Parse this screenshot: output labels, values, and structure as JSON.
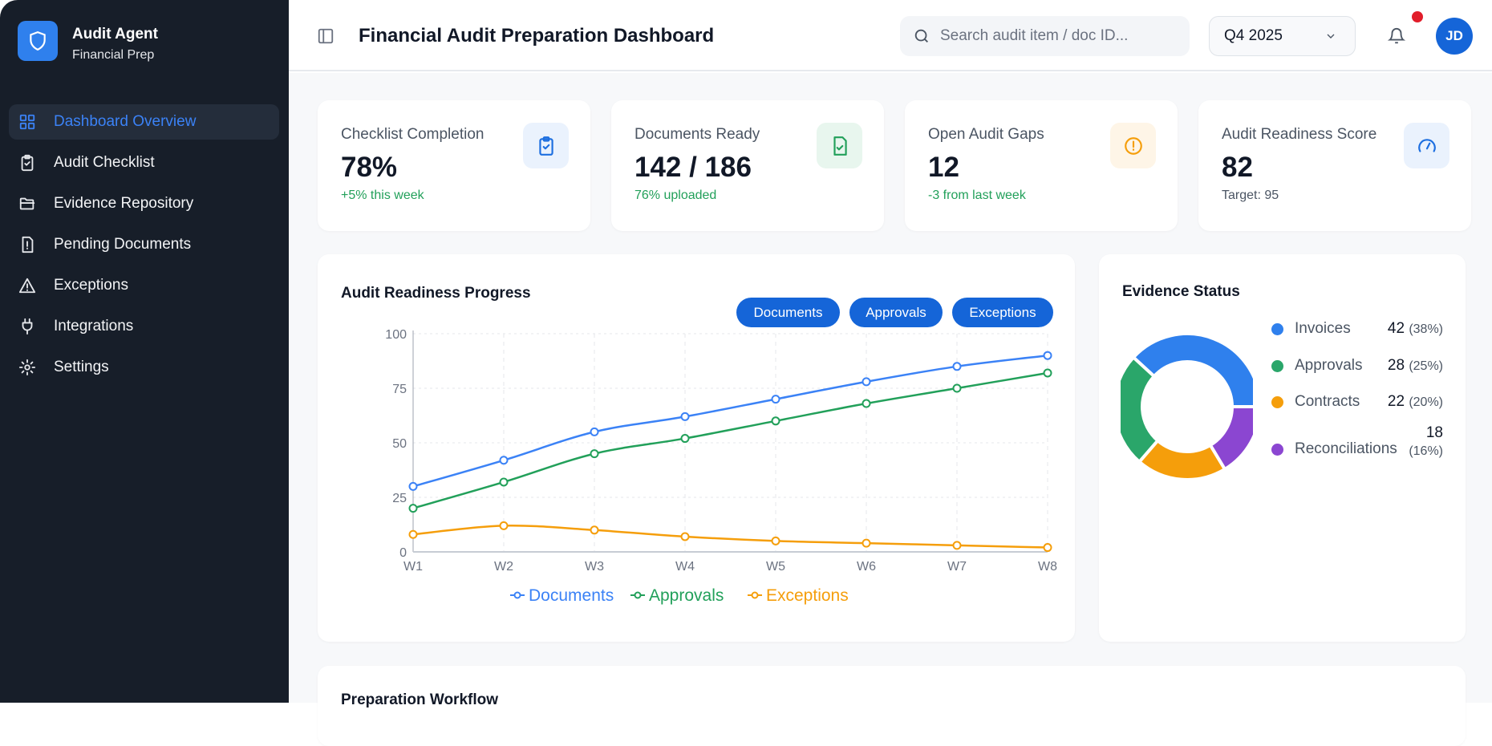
{
  "sidebar": {
    "brand": "Audit Agent",
    "subtitle": "Financial Prep",
    "items": [
      {
        "label": "Dashboard Overview",
        "icon": "grid-icon",
        "active": true
      },
      {
        "label": "Audit Checklist",
        "icon": "clipboard-check-icon"
      },
      {
        "label": "Evidence Repository",
        "icon": "folder-open-icon"
      },
      {
        "label": "Pending Documents",
        "icon": "file-alert-icon"
      },
      {
        "label": "Exceptions",
        "icon": "warning-triangle-icon"
      },
      {
        "label": "Integrations",
        "icon": "plug-icon"
      },
      {
        "label": "Settings",
        "icon": "gear-icon"
      }
    ]
  },
  "header": {
    "title": "Financial Audit Preparation Dashboard",
    "search_placeholder": "Search audit item / doc ID...",
    "period": "Q4 2025",
    "avatar": "JD"
  },
  "stats": [
    {
      "label": "Checklist Completion",
      "value": "78%",
      "sub": "+5% this week",
      "sub_color": "#22a05a",
      "icon": "clipboard-check-icon",
      "icon_color": "#1d6fe0",
      "icon_bg": "#eaf2fd"
    },
    {
      "label": "Documents Ready",
      "value": "142 / 186",
      "sub": "76% uploaded",
      "sub_color": "#22a05a",
      "icon": "file-check-icon",
      "icon_color": "#22a05a",
      "icon_bg": "#e8f6ee"
    },
    {
      "label": "Open Audit Gaps",
      "value": "12",
      "sub": "-3 from last week",
      "sub_color": "#22a05a",
      "icon": "alert-circle-icon",
      "icon_color": "#f59e0b",
      "icon_bg": "#fef5e7"
    },
    {
      "label": "Audit Readiness Score",
      "value": "82",
      "sub": "Target: 95",
      "sub_color": "#4b5563",
      "icon": "gauge-icon",
      "icon_color": "#1d6fe0",
      "icon_bg": "#eaf2fd"
    }
  ],
  "progress": {
    "title": "Audit Readiness Progress",
    "buttons": [
      "Documents",
      "Approvals",
      "Exceptions"
    ]
  },
  "evidence": {
    "title": "Evidence Status"
  },
  "workflow": {
    "title": "Preparation Workflow"
  },
  "chart_data": [
    {
      "type": "line",
      "title": "Audit Readiness Progress",
      "categories": [
        "W1",
        "W2",
        "W3",
        "W4",
        "W5",
        "W6",
        "W7",
        "W8"
      ],
      "ylim": [
        0,
        100
      ],
      "yticks": [
        "0",
        "25",
        "50",
        "75",
        "100"
      ],
      "grid": true,
      "legend": "bottom",
      "series": [
        {
          "name": "Documents",
          "color": "#3b82f6",
          "values": [
            30,
            42,
            55,
            62,
            70,
            78,
            85,
            90
          ]
        },
        {
          "name": "Approvals",
          "color": "#22a05a",
          "values": [
            20,
            32,
            45,
            52,
            60,
            68,
            75,
            82
          ]
        },
        {
          "name": "Exceptions",
          "color": "#f59e0b",
          "values": [
            8,
            12,
            10,
            7,
            5,
            4,
            3,
            2
          ]
        }
      ]
    },
    {
      "type": "pie",
      "title": "Evidence Status",
      "legend": "right",
      "slices": [
        {
          "name": "Invoices",
          "value": 42,
          "pct": "(38%)",
          "color": "#2f80ed"
        },
        {
          "name": "Approvals",
          "value": 28,
          "pct": "(25%)",
          "color": "#2aa66a"
        },
        {
          "name": "Contracts",
          "value": 22,
          "pct": "(20%)",
          "color": "#f59e0b"
        },
        {
          "name": "Reconciliations",
          "value": 18,
          "pct": "(16%)",
          "color": "#8b46d1"
        }
      ]
    }
  ]
}
